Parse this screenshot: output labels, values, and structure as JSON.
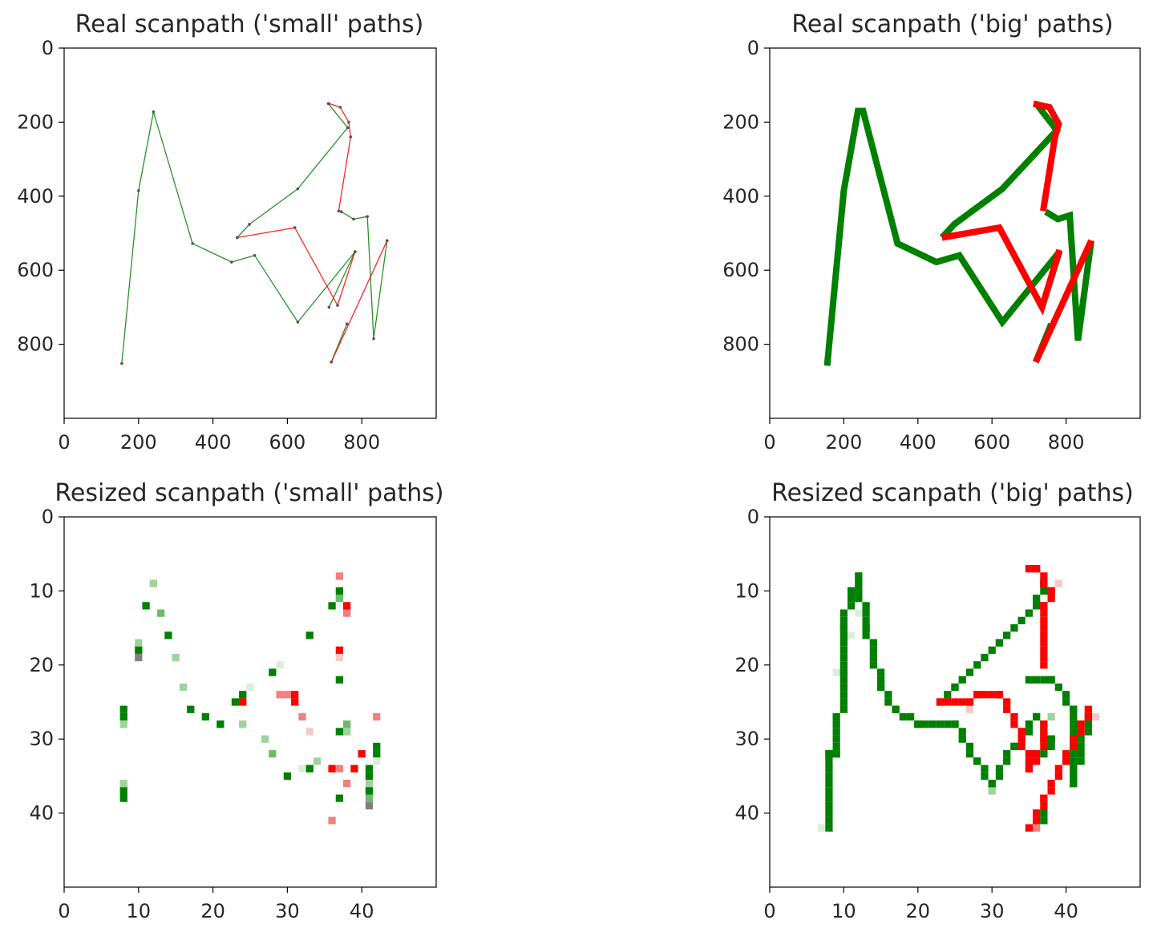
{
  "figure": {
    "colors": {
      "green": "#008000",
      "red": "#ff0000",
      "axis": "#000000",
      "text": "#262626"
    }
  },
  "chart_data": [
    {
      "type": "line",
      "title": "Real scanpath    ('small' paths)",
      "xlim": [
        0,
        1000
      ],
      "ylim": [
        1000,
        0
      ],
      "y_inverted": true,
      "xticks": [
        "0",
        "200",
        "400",
        "600",
        "800"
      ],
      "yticks": [
        "0",
        "200",
        "400",
        "600",
        "800"
      ],
      "xtick_values": [
        0,
        200,
        400,
        600,
        800
      ],
      "ytick_values": [
        0,
        200,
        400,
        600,
        800
      ],
      "grid": false,
      "line_style": "thin",
      "series": [
        {
          "color": "#008000",
          "points": [
            [
              155,
              852
            ],
            [
              200,
              385
            ],
            [
              240,
              172
            ],
            [
              345,
              528
            ],
            [
              450,
              578
            ],
            [
              512,
              560
            ],
            [
              628,
              740
            ],
            [
              782,
              550
            ],
            [
              712,
              700
            ]
          ]
        },
        {
          "color": "#008000",
          "points": [
            [
              465,
              512
            ],
            [
              498,
              476
            ],
            [
              628,
              380
            ],
            [
              762,
              215
            ],
            [
              710,
              150
            ]
          ]
        },
        {
          "color": "#008000",
          "points": [
            [
              745,
              442
            ],
            [
              778,
              462
            ],
            [
              815,
              455
            ],
            [
              832,
              785
            ],
            [
              868,
              520
            ]
          ]
        },
        {
          "color": "#008000",
          "points": [
            [
              718,
              848
            ],
            [
              760,
              745
            ]
          ]
        },
        {
          "color": "#ff0000",
          "points": [
            [
              465,
              512
            ],
            [
              620,
              485
            ],
            [
              735,
              695
            ],
            [
              782,
              550
            ]
          ]
        },
        {
          "color": "#ff0000",
          "points": [
            [
              738,
              440
            ],
            [
              770,
              240
            ],
            [
              765,
              200
            ],
            [
              742,
              160
            ],
            [
              712,
              150
            ]
          ]
        },
        {
          "color": "#ff0000",
          "points": [
            [
              718,
              848
            ],
            [
              868,
              520
            ]
          ]
        }
      ]
    },
    {
      "type": "line",
      "title": "Real scanpath    ('big' paths)",
      "xlim": [
        0,
        1000
      ],
      "ylim": [
        1000,
        0
      ],
      "y_inverted": true,
      "xticks": [
        "0",
        "200",
        "400",
        "600",
        "800"
      ],
      "yticks": [
        "0",
        "200",
        "400",
        "600",
        "800"
      ],
      "xtick_values": [
        0,
        200,
        400,
        600,
        800
      ],
      "ytick_values": [
        0,
        200,
        400,
        600,
        800
      ],
      "grid": false,
      "line_style": "thick",
      "series": [
        {
          "color": "#008000",
          "points": [
            [
              155,
              858
            ],
            [
              200,
              385
            ],
            [
              238,
              170
            ],
            [
              252,
              170
            ],
            [
              345,
              528
            ],
            [
              450,
              578
            ],
            [
              512,
              560
            ],
            [
              628,
              740
            ],
            [
              782,
              550
            ],
            [
              735,
              700
            ]
          ]
        },
        {
          "color": "#008000",
          "points": [
            [
              465,
              512
            ],
            [
              498,
              476
            ],
            [
              628,
              380
            ],
            [
              775,
              222
            ],
            [
              718,
              148
            ]
          ]
        },
        {
          "color": "#008000",
          "points": [
            [
              745,
              442
            ],
            [
              778,
              462
            ],
            [
              810,
              452
            ],
            [
              832,
              790
            ],
            [
              868,
              520
            ]
          ]
        },
        {
          "color": "#008000",
          "points": [
            [
              718,
              848
            ],
            [
              760,
              745
            ]
          ]
        },
        {
          "color": "#ff0000",
          "points": [
            [
              465,
              512
            ],
            [
              620,
              485
            ],
            [
              735,
              700
            ],
            [
              782,
              545
            ]
          ]
        },
        {
          "color": "#ff0000",
          "points": [
            [
              738,
              440
            ],
            [
              770,
              240
            ],
            [
              780,
              205
            ],
            [
              755,
              160
            ],
            [
              712,
              150
            ]
          ]
        },
        {
          "color": "#ff0000",
          "points": [
            [
              718,
              848
            ],
            [
              868,
              520
            ]
          ]
        }
      ]
    },
    {
      "type": "heatmap",
      "title": "Resized scanpath ('small' paths)",
      "xlim": [
        0,
        50
      ],
      "ylim": [
        50,
        0
      ],
      "y_inverted": true,
      "xticks": [
        "0",
        "10",
        "20",
        "30",
        "40"
      ],
      "yticks": [
        "0",
        "10",
        "20",
        "30",
        "40"
      ],
      "xtick_values": [
        0,
        10,
        20,
        30,
        40
      ],
      "ytick_values": [
        0,
        10,
        20,
        30,
        40
      ],
      "grid": false,
      "cells": [
        [
          12,
          9,
          "#9ed29e"
        ],
        [
          11,
          12,
          "#008000"
        ],
        [
          13,
          13,
          "#6cbb6c"
        ],
        [
          14,
          16,
          "#008000"
        ],
        [
          15,
          19,
          "#9ed29e"
        ],
        [
          16,
          23,
          "#9ed29e"
        ],
        [
          17,
          26,
          "#008000"
        ],
        [
          19,
          27,
          "#008000"
        ],
        [
          21,
          28,
          "#008000"
        ],
        [
          10,
          17,
          "#9ed29e"
        ],
        [
          10,
          18,
          "#008000"
        ],
        [
          10,
          19,
          "#808080"
        ],
        [
          8,
          26,
          "#008000"
        ],
        [
          8,
          27,
          "#008000"
        ],
        [
          8,
          28,
          "#9ed29e"
        ],
        [
          8,
          36,
          "#9ed29e"
        ],
        [
          8,
          37,
          "#008000"
        ],
        [
          8,
          38,
          "#008000"
        ],
        [
          23,
          25,
          "#008000"
        ],
        [
          24,
          24,
          "#008000"
        ],
        [
          24,
          25,
          "#ff0000"
        ],
        [
          24,
          28,
          "#9ed29e"
        ],
        [
          25,
          23,
          "#d9efd9"
        ],
        [
          28,
          21,
          "#008000"
        ],
        [
          29,
          20,
          "#d9efd9"
        ],
        [
          27,
          30,
          "#9ed29e"
        ],
        [
          28,
          32,
          "#6cbb6c"
        ],
        [
          30,
          35,
          "#008000"
        ],
        [
          32,
          34,
          "#d9efd9"
        ],
        [
          33,
          34,
          "#008000"
        ],
        [
          34,
          33,
          "#9ed29e"
        ],
        [
          29,
          24,
          "#f08080"
        ],
        [
          30,
          24,
          "#f08080"
        ],
        [
          31,
          24,
          "#ff0000"
        ],
        [
          31,
          25,
          "#ff0000"
        ],
        [
          32,
          27,
          "#f08080"
        ],
        [
          33,
          29,
          "#f5c9c9"
        ],
        [
          33,
          16,
          "#008000"
        ],
        [
          36,
          12,
          "#008000"
        ],
        [
          37,
          11,
          "#6cbb6c"
        ],
        [
          37,
          10,
          "#008000"
        ],
        [
          37,
          8,
          "#f08080"
        ],
        [
          38,
          12,
          "#ff0000"
        ],
        [
          38,
          13,
          "#f08080"
        ],
        [
          37,
          18,
          "#ff0000"
        ],
        [
          37,
          19,
          "#f5c9c9"
        ],
        [
          37,
          22,
          "#008000"
        ],
        [
          37,
          29,
          "#008000"
        ],
        [
          38,
          28,
          "#6cbb6c"
        ],
        [
          38,
          29,
          "#9ed29e"
        ],
        [
          36,
          34,
          "#ff0000"
        ],
        [
          37,
          34,
          "#f08080"
        ],
        [
          38,
          36,
          "#f08080"
        ],
        [
          39,
          34,
          "#ff0000"
        ],
        [
          40,
          32,
          "#ff0000"
        ],
        [
          37,
          38,
          "#008000"
        ],
        [
          36,
          41,
          "#f08080"
        ],
        [
          41,
          34,
          "#008000"
        ],
        [
          41,
          35,
          "#008000"
        ],
        [
          41,
          36,
          "#9ed29e"
        ],
        [
          41,
          37,
          "#008000"
        ],
        [
          41,
          38,
          "#6cbb6c"
        ],
        [
          41,
          39,
          "#808080"
        ],
        [
          42,
          31,
          "#008000"
        ],
        [
          42,
          32,
          "#008000"
        ],
        [
          42,
          33,
          "#d9efd9"
        ],
        [
          42,
          27,
          "#f08080"
        ]
      ]
    },
    {
      "type": "heatmap",
      "title": "Resized scanpath ('big' paths)",
      "xlim": [
        0,
        50
      ],
      "ylim": [
        50,
        0
      ],
      "y_inverted": true,
      "xticks": [
        "0",
        "10",
        "20",
        "30",
        "40"
      ],
      "yticks": [
        "0",
        "10",
        "20",
        "30",
        "40"
      ],
      "xtick_values": [
        0,
        10,
        20,
        30,
        40
      ],
      "ytick_values": [
        0,
        10,
        20,
        30,
        40
      ],
      "grid": false,
      "paths": [
        {
          "color": "#008000",
          "points": [
            [
              8,
              42
            ],
            [
              8,
              32
            ],
            [
              9,
              32
            ],
            [
              10,
              21
            ],
            [
              10,
              15
            ],
            [
              11,
              10
            ],
            [
              12,
              8
            ],
            [
              13,
              15
            ],
            [
              15,
              23
            ],
            [
              17,
              26
            ],
            [
              20,
              28
            ],
            [
              25,
              28
            ],
            [
              28,
              33
            ],
            [
              30,
              36
            ],
            [
              33,
              31
            ],
            [
              36,
              27
            ],
            [
              38,
              30
            ],
            [
              37,
              32
            ]
          ]
        },
        {
          "color": "#008000",
          "points": [
            [
              23,
              25
            ],
            [
              25,
              23
            ],
            [
              31,
              17
            ],
            [
              36,
              12
            ],
            [
              37,
              9
            ],
            [
              38,
              10
            ]
          ]
        },
        {
          "color": "#008000",
          "points": [
            [
              35,
              22
            ],
            [
              38,
              22
            ],
            [
              41,
              26
            ],
            [
              41,
              36
            ],
            [
              43,
              27
            ]
          ]
        },
        {
          "color": "#008000",
          "points": [
            [
              37,
              40
            ],
            [
              37,
              41
            ]
          ]
        },
        {
          "color": "#ff0000",
          "points": [
            [
              23,
              25
            ],
            [
              27,
              25
            ],
            [
              28,
              24
            ],
            [
              31,
              24
            ],
            [
              34,
              29
            ],
            [
              35,
              34
            ],
            [
              37,
              30
            ],
            [
              37,
              28
            ]
          ]
        },
        {
          "color": "#ff0000",
          "points": [
            [
              37,
              20
            ],
            [
              37,
              12
            ],
            [
              38,
              10
            ],
            [
              36,
              7
            ],
            [
              35,
              7
            ]
          ]
        },
        {
          "color": "#ff0000",
          "points": [
            [
              35,
              42
            ],
            [
              37,
              38
            ],
            [
              40,
              33
            ],
            [
              43,
              26
            ]
          ]
        }
      ],
      "light_cells": [
        [
          7,
          42,
          "#d9efd9"
        ],
        [
          9,
          21,
          "#d9efd9"
        ],
        [
          12,
          13,
          "#d9efd9"
        ],
        [
          11,
          16,
          "#d9efd9"
        ],
        [
          25,
          23,
          "#d9efd9"
        ],
        [
          30,
          37,
          "#9ed29e"
        ],
        [
          36,
          40,
          "#9ed29e"
        ],
        [
          36,
          42,
          "#f08080"
        ],
        [
          38,
          27,
          "#9ed29e"
        ],
        [
          41,
          27,
          "#f08080"
        ],
        [
          42,
          28,
          "#f08080"
        ],
        [
          44,
          27,
          "#f5c9c9"
        ],
        [
          43,
          28,
          "#d9efd9"
        ],
        [
          39,
          9,
          "#f5c9c9"
        ],
        [
          36,
          11,
          "#9ed29e"
        ],
        [
          27,
          26,
          "#f5c9c9"
        ]
      ]
    }
  ]
}
